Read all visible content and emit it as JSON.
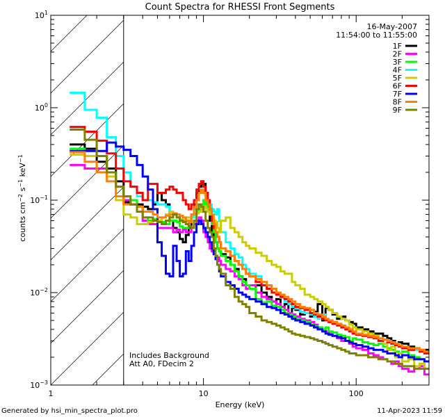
{
  "chart_data": {
    "type": "line",
    "style": "histogram-step",
    "title": "Count Spectra for RHESSI Front Segments",
    "xlabel": "Energy (keV)",
    "ylabel": "counts cm^-2 s^-1 keV^-1",
    "xscale": "log",
    "yscale": "log",
    "xlim": [
      1,
      300
    ],
    "ylim": [
      0.001,
      10
    ],
    "x_ticks": [
      {
        "value": 1,
        "label": "1"
      },
      {
        "value": 10,
        "label": "10"
      },
      {
        "value": 100,
        "label": "100"
      }
    ],
    "y_ticks": [
      {
        "value": 10,
        "base": "10",
        "exp": "1"
      },
      {
        "value": 1,
        "base": "10",
        "exp": "0"
      },
      {
        "value": 0.1,
        "base": "10",
        "exp": "−1"
      },
      {
        "value": 0.01,
        "base": "10",
        "exp": "−2"
      },
      {
        "value": 0.001,
        "base": "10",
        "exp": "−3"
      }
    ],
    "shaded_region": {
      "from_keV": 1,
      "to_keV": 3,
      "style": "diagonal-hatch",
      "boundary_line_keV": 3
    },
    "legend": {
      "placement": "top-right",
      "date": "16-May-2007",
      "time_range": "11:54:00 to 11:55:00"
    },
    "annotations": [
      "Includes Background",
      "Att A0, FDecim 2"
    ],
    "energy_edges": [
      1.33,
      1.67,
      2.0,
      2.33,
      2.67,
      3.0,
      3.33,
      3.67,
      4.0,
      4.33,
      4.67,
      5.0,
      5.33,
      5.67,
      6.0,
      6.33,
      6.67,
      7.0,
      7.33,
      7.67,
      8.0,
      8.33,
      8.67,
      9.0,
      9.33,
      9.67,
      10.0,
      10.33,
      10.67,
      11.0,
      11.33,
      11.67,
      12.0,
      12.33,
      12.67,
      13.0,
      14,
      15,
      16,
      17,
      18,
      19,
      20,
      22,
      24,
      26,
      28,
      30,
      32,
      34,
      36,
      38,
      40,
      43,
      46,
      50,
      53,
      56,
      60,
      63,
      66,
      70,
      75,
      80,
      85,
      90,
      95,
      100,
      110,
      120,
      130,
      140,
      150,
      160,
      170,
      180,
      190,
      200,
      220,
      240,
      260,
      280,
      300
    ],
    "series": [
      {
        "name": "1F",
        "color": "#000000",
        "values": [
          0.4,
          0.36,
          0.26,
          0.22,
          0.16,
          0.095,
          0.09,
          0.09,
          0.085,
          0.08,
          0.09,
          0.12,
          0.1,
          0.09,
          0.06,
          0.05,
          0.045,
          0.038,
          0.035,
          0.042,
          0.05,
          0.07,
          0.09,
          0.12,
          0.14,
          0.16,
          0.15,
          0.12,
          0.09,
          0.06,
          0.045,
          0.04,
          0.035,
          0.03,
          0.028,
          0.026,
          0.024,
          0.02,
          0.018,
          0.015,
          0.014,
          0.012,
          0.011,
          0.012,
          0.01,
          0.009,
          0.008,
          0.0085,
          0.007,
          0.0075,
          0.006,
          0.0068,
          0.0065,
          0.0058,
          0.006,
          0.0055,
          0.0062,
          0.0075,
          0.005,
          0.0068,
          0.0065,
          0.0058,
          0.0052,
          0.0055,
          0.005,
          0.0048,
          0.0046,
          0.0042,
          0.004,
          0.0038,
          0.0036,
          0.0036,
          0.0034,
          0.0032,
          0.003,
          0.0028,
          0.0029,
          0.0028,
          0.0026,
          0.0025,
          0.0024,
          0.0024,
          0.0023
        ]
      },
      {
        "name": "2F",
        "color": "#ff00ff",
        "values": [
          0.24,
          0.22,
          0.22,
          0.18,
          0.14,
          0.1,
          0.09,
          0.085,
          0.06,
          0.055,
          0.055,
          0.05,
          0.05,
          0.05,
          0.05,
          0.045,
          0.048,
          0.045,
          0.048,
          0.045,
          0.045,
          0.05,
          0.055,
          0.06,
          0.065,
          0.06,
          0.045,
          0.04,
          0.035,
          0.03,
          0.028,
          0.026,
          0.025,
          0.024,
          0.022,
          0.02,
          0.018,
          0.017,
          0.015,
          0.014,
          0.012,
          0.011,
          0.012,
          0.01,
          0.009,
          0.0085,
          0.008,
          0.0075,
          0.007,
          0.0065,
          0.006,
          0.0058,
          0.0055,
          0.0052,
          0.005,
          0.0048,
          0.0045,
          0.0042,
          0.004,
          0.0038,
          0.0036,
          0.0034,
          0.0032,
          0.003,
          0.0033,
          0.0028,
          0.0026,
          0.0025,
          0.0024,
          0.0022,
          0.0021,
          0.002,
          0.0019,
          0.0018,
          0.0017,
          0.0018,
          0.0016,
          0.0015,
          0.0014,
          0.0015,
          0.0016,
          0.0013,
          0.0013
        ]
      },
      {
        "name": "3F",
        "color": "#00ff00",
        "values": [
          0.36,
          0.3,
          0.3,
          0.2,
          0.14,
          0.11,
          0.1,
          0.085,
          0.065,
          0.06,
          0.062,
          0.06,
          0.058,
          0.055,
          0.06,
          0.06,
          0.058,
          0.052,
          0.05,
          0.05,
          0.06,
          0.065,
          0.07,
          0.075,
          0.08,
          0.09,
          0.1,
          0.09,
          0.08,
          0.07,
          0.055,
          0.045,
          0.035,
          0.03,
          0.028,
          0.025,
          0.022,
          0.02,
          0.017,
          0.015,
          0.013,
          0.012,
          0.011,
          0.0085,
          0.0078,
          0.008,
          0.0072,
          0.007,
          0.0065,
          0.006,
          0.0058,
          0.0055,
          0.0052,
          0.005,
          0.0048,
          0.0045,
          0.0043,
          0.0042,
          0.004,
          0.0042,
          0.0038,
          0.0037,
          0.0035,
          0.0034,
          0.0033,
          0.003,
          0.0032,
          0.0031,
          0.0029,
          0.0028,
          0.0027,
          0.0028,
          0.0026,
          0.0025,
          0.0024,
          0.0023,
          0.0022,
          0.0023,
          0.0021,
          0.002,
          0.0019,
          0.0018,
          0.0017
        ]
      },
      {
        "name": "4F",
        "color": "#00ffff",
        "values": [
          1.45,
          0.95,
          0.78,
          0.48,
          0.3,
          0.2,
          0.14,
          0.11,
          0.1,
          0.1,
          0.095,
          0.09,
          0.09,
          0.085,
          0.075,
          0.07,
          0.065,
          0.06,
          0.058,
          0.055,
          0.058,
          0.065,
          0.08,
          0.1,
          0.12,
          0.13,
          0.13,
          0.11,
          0.1,
          0.09,
          0.08,
          0.075,
          0.07,
          0.08,
          0.06,
          0.045,
          0.035,
          0.03,
          0.026,
          0.024,
          0.02,
          0.018,
          0.016,
          0.015,
          0.013,
          0.012,
          0.011,
          0.0095,
          0.0088,
          0.008,
          0.0075,
          0.007,
          0.0067,
          0.0062,
          0.006,
          0.0058,
          0.0055,
          0.0052,
          0.0058,
          0.005,
          0.0048,
          0.0046,
          0.0045,
          0.0042,
          0.004,
          0.0038,
          0.0036,
          0.0035,
          0.0034,
          0.0033,
          0.0032,
          0.003,
          0.0031,
          0.0029,
          0.0028,
          0.0027,
          0.0026,
          0.0025,
          0.0025,
          0.0024,
          0.0023,
          0.0022,
          0.0022
        ]
      },
      {
        "name": "5F",
        "color": "#cccc00",
        "values": [
          0.31,
          0.3,
          0.3,
          0.18,
          0.1,
          0.07,
          0.065,
          0.055,
          0.055,
          0.058,
          0.06,
          0.06,
          0.065,
          0.07,
          0.075,
          0.07,
          0.065,
          0.062,
          0.06,
          0.065,
          0.065,
          0.07,
          0.07,
          0.072,
          0.075,
          0.08,
          0.085,
          0.08,
          0.075,
          0.07,
          0.065,
          0.06,
          0.058,
          0.05,
          0.045,
          0.06,
          0.065,
          0.05,
          0.045,
          0.04,
          0.035,
          0.032,
          0.03,
          0.027,
          0.025,
          0.022,
          0.02,
          0.019,
          0.017,
          0.016,
          0.016,
          0.013,
          0.012,
          0.011,
          0.0095,
          0.009,
          0.0085,
          0.008,
          0.0075,
          0.007,
          0.0065,
          0.006,
          0.0055,
          0.0052,
          0.005,
          0.0045,
          0.0042,
          0.004,
          0.0038,
          0.0036,
          0.0034,
          0.003,
          0.0028,
          0.0024,
          0.0026,
          0.002,
          0.0022,
          0.0018,
          0.0019,
          0.0016,
          0.0017,
          0.0015,
          0.0014
        ]
      },
      {
        "name": "6F",
        "color": "#ff0000",
        "values": [
          0.62,
          0.55,
          0.44,
          0.32,
          0.22,
          0.16,
          0.14,
          0.12,
          0.1,
          0.15,
          0.15,
          0.12,
          0.12,
          0.13,
          0.14,
          0.13,
          0.12,
          0.12,
          0.1,
          0.09,
          0.08,
          0.09,
          0.1,
          0.13,
          0.15,
          0.16,
          0.14,
          0.12,
          0.1,
          0.08,
          0.06,
          0.05,
          0.045,
          0.04,
          0.035,
          0.03,
          0.028,
          0.025,
          0.022,
          0.02,
          0.018,
          0.016,
          0.015,
          0.013,
          0.012,
          0.011,
          0.01,
          0.0095,
          0.009,
          0.0085,
          0.008,
          0.0075,
          0.007,
          0.0068,
          0.0065,
          0.006,
          0.0058,
          0.0055,
          0.0052,
          0.005,
          0.0048,
          0.0046,
          0.0044,
          0.0042,
          0.004,
          0.0038,
          0.0036,
          0.0035,
          0.0034,
          0.0033,
          0.0032,
          0.003,
          0.0031,
          0.0029,
          0.0028,
          0.0027,
          0.0026,
          0.0025,
          0.0024,
          0.0025,
          0.0023,
          0.0022,
          0.0022
        ]
      },
      {
        "name": "7F",
        "color": "#0000ff",
        "values": [
          0.34,
          0.34,
          0.34,
          0.42,
          0.38,
          0.35,
          0.3,
          0.24,
          0.18,
          0.13,
          0.08,
          0.035,
          0.025,
          0.016,
          0.015,
          0.032,
          0.022,
          0.015,
          0.016,
          0.028,
          0.022,
          0.032,
          0.045,
          0.055,
          0.06,
          0.055,
          0.05,
          0.045,
          0.04,
          0.035,
          0.03,
          0.026,
          0.023,
          0.02,
          0.017,
          0.015,
          0.013,
          0.012,
          0.011,
          0.01,
          0.0095,
          0.009,
          0.0085,
          0.008,
          0.0075,
          0.007,
          0.0068,
          0.0065,
          0.006,
          0.0058,
          0.0055,
          0.0052,
          0.005,
          0.0048,
          0.0046,
          0.0044,
          0.0042,
          0.004,
          0.0038,
          0.0036,
          0.0035,
          0.0034,
          0.0033,
          0.0032,
          0.003,
          0.0029,
          0.0028,
          0.0027,
          0.0026,
          0.0025,
          0.0024,
          0.0024,
          0.0023,
          0.0022,
          0.0022,
          0.0021,
          0.002,
          0.0021,
          0.002,
          0.0019,
          0.0019,
          0.0018,
          0.0018
        ]
      },
      {
        "name": "8F",
        "color": "#ff8000",
        "values": [
          0.33,
          0.26,
          0.2,
          0.16,
          0.11,
          0.09,
          0.09,
          0.085,
          0.075,
          0.075,
          0.07,
          0.065,
          0.065,
          0.068,
          0.07,
          0.072,
          0.07,
          0.068,
          0.065,
          0.06,
          0.058,
          0.07,
          0.085,
          0.1,
          0.12,
          0.13,
          0.12,
          0.1,
          0.09,
          0.08,
          0.07,
          0.055,
          0.045,
          0.04,
          0.035,
          0.03,
          0.028,
          0.025,
          0.022,
          0.02,
          0.018,
          0.016,
          0.015,
          0.014,
          0.013,
          0.012,
          0.011,
          0.01,
          0.0095,
          0.009,
          0.0085,
          0.008,
          0.0075,
          0.007,
          0.0068,
          0.0065,
          0.006,
          0.0058,
          0.0055,
          0.0052,
          0.005,
          0.0048,
          0.0046,
          0.0044,
          0.0042,
          0.004,
          0.0038,
          0.0036,
          0.0035,
          0.0034,
          0.0033,
          0.0032,
          0.0031,
          0.003,
          0.0029,
          0.0028,
          0.0027,
          0.0026,
          0.0025,
          0.0025,
          0.0024,
          0.0023,
          0.0023
        ]
      },
      {
        "name": "9F",
        "color": "#808000",
        "values": [
          0.58,
          0.45,
          0.3,
          0.2,
          0.14,
          0.11,
          0.09,
          0.075,
          0.065,
          0.065,
          0.06,
          0.058,
          0.055,
          0.06,
          0.065,
          0.07,
          0.065,
          0.06,
          0.058,
          0.055,
          0.052,
          0.05,
          0.06,
          0.08,
          0.09,
          0.085,
          0.075,
          0.06,
          0.05,
          0.045,
          0.04,
          0.03,
          0.025,
          0.02,
          0.018,
          0.016,
          0.012,
          0.011,
          0.009,
          0.008,
          0.0075,
          0.007,
          0.006,
          0.0055,
          0.005,
          0.0048,
          0.0046,
          0.0044,
          0.0042,
          0.004,
          0.0038,
          0.0036,
          0.0035,
          0.0034,
          0.0033,
          0.0032,
          0.0031,
          0.003,
          0.0029,
          0.0028,
          0.0027,
          0.0026,
          0.0025,
          0.0024,
          0.0023,
          0.0022,
          0.0022,
          0.0021,
          0.0021,
          0.002,
          0.002,
          0.0019,
          0.0019,
          0.0018,
          0.0018,
          0.0017,
          0.0017,
          0.0016,
          0.0016,
          0.0015,
          0.0015,
          0.0015,
          0.0014
        ]
      }
    ]
  },
  "footer": {
    "generated_by": "Generated by hsi_min_spectra_plot.pro",
    "timestamp": "11-Apr-2023 11:59"
  }
}
